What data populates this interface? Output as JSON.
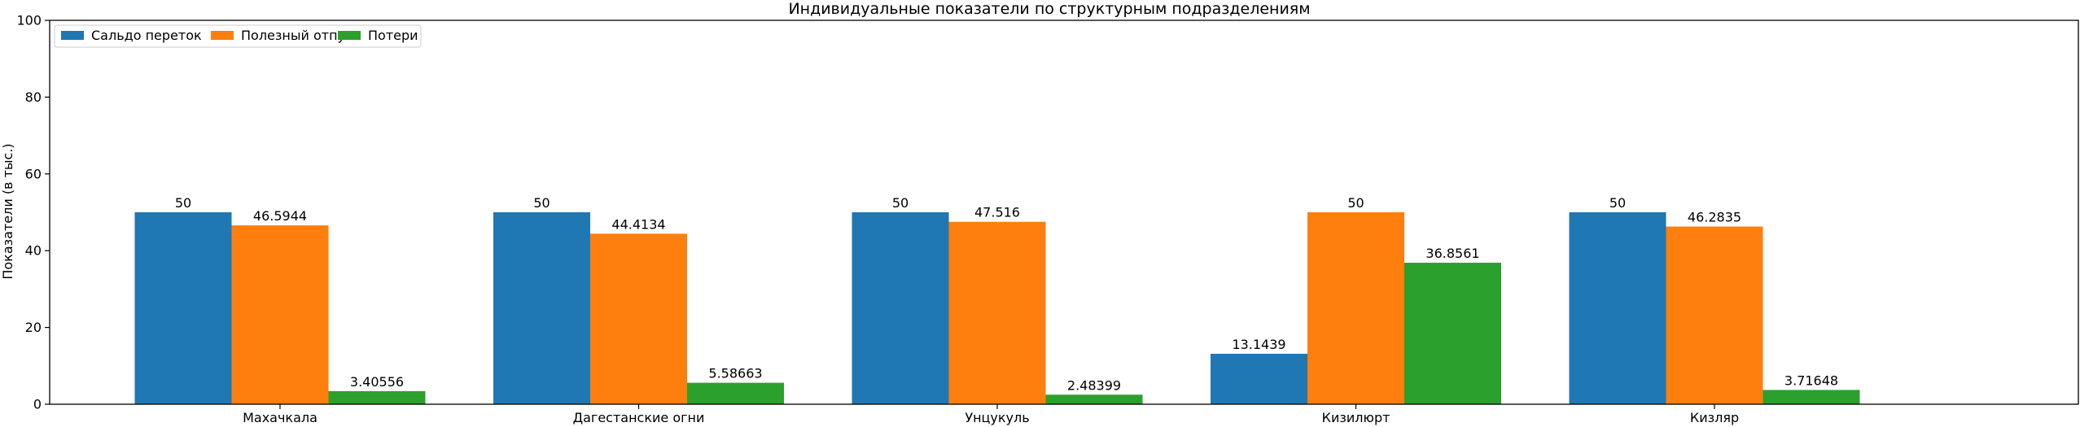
{
  "chart_data": {
    "type": "bar",
    "title": "Индивидуальные показатели по структурным подразделениям",
    "xlabel": "",
    "ylabel": "Показатели (в тыс.)",
    "ylim": [
      0,
      100
    ],
    "yticks": [
      0,
      20,
      40,
      60,
      80,
      100
    ],
    "categories": [
      "Махачкала",
      "Дагестанские огни",
      "Унцукуль",
      "Кизилюрт",
      "Кизляр"
    ],
    "series": [
      {
        "name": "Сальдо переток",
        "color": "#1f77b4",
        "values": [
          50,
          50,
          50,
          13.1439,
          50
        ],
        "labels": [
          "50",
          "50",
          "50",
          "13.1439",
          "50"
        ]
      },
      {
        "name": "Полезный отпуск",
        "color": "#ff7f0e",
        "values": [
          46.5944,
          44.4134,
          47.516,
          50,
          46.2835
        ],
        "labels": [
          "46.5944",
          "44.4134",
          "47.516",
          "50",
          "46.2835"
        ]
      },
      {
        "name": "Потери",
        "color": "#2ca02c",
        "values": [
          3.40556,
          5.58663,
          2.48399,
          36.8561,
          3.71648
        ],
        "labels": [
          "3.40556",
          "5.58663",
          "2.48399",
          "36.8561",
          "3.71648"
        ]
      }
    ],
    "legend": "top-left",
    "grid": false
  }
}
